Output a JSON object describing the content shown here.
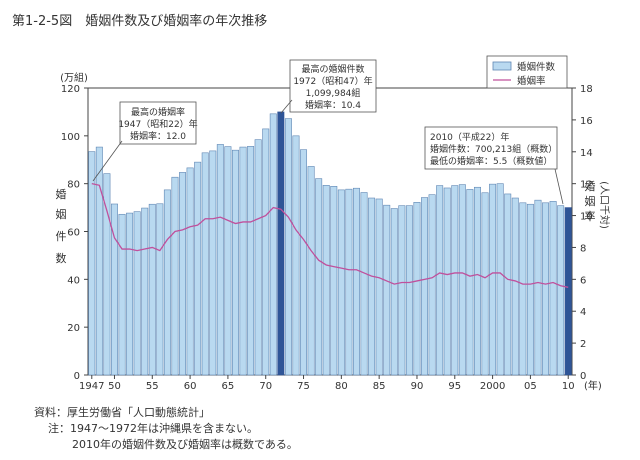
{
  "page_title": "第1-2-5図　婚姻件数及び婚姻率の年次推移",
  "chart_data": {
    "type": "bar+line",
    "title": "婚姻件数及び婚姻率の年次推移",
    "x": [
      1947,
      1948,
      1949,
      1950,
      1951,
      1952,
      1953,
      1954,
      1955,
      1956,
      1957,
      1958,
      1959,
      1960,
      1961,
      1962,
      1963,
      1964,
      1965,
      1966,
      1967,
      1968,
      1969,
      1970,
      1971,
      1972,
      1973,
      1974,
      1975,
      1976,
      1977,
      1978,
      1979,
      1980,
      1981,
      1982,
      1983,
      1984,
      1985,
      1986,
      1987,
      1988,
      1989,
      1990,
      1991,
      1992,
      1993,
      1994,
      1995,
      1996,
      1997,
      1998,
      1999,
      2000,
      2001,
      2002,
      2003,
      2004,
      2005,
      2006,
      2007,
      2008,
      2009,
      2010
    ],
    "series": [
      {
        "name": "婚姻件数",
        "axis": "left",
        "unit": "万組",
        "kind": "bar",
        "values": [
          93.4,
          95.3,
          84.2,
          71.5,
          67.2,
          67.7,
          68.3,
          69.8,
          71.4,
          71.6,
          77.4,
          82.7,
          84.7,
          86.6,
          89.0,
          92.9,
          93.7,
          96.4,
          95.5,
          94.0,
          95.3,
          95.6,
          98.4,
          102.9,
          109.2,
          110.0,
          107.2,
          100.0,
          94.2,
          87.2,
          82.1,
          79.3,
          78.9,
          77.4,
          77.7,
          78.1,
          76.3,
          74.0,
          73.6,
          71.0,
          69.6,
          70.8,
          70.8,
          72.2,
          74.2,
          75.4,
          79.2,
          78.2,
          79.2,
          79.6,
          77.6,
          78.5,
          76.2,
          79.8,
          80.0,
          75.7,
          74.0,
          72.0,
          71.4,
          73.1,
          72.0,
          72.6,
          70.8,
          70.0
        ]
      },
      {
        "name": "婚姻率",
        "axis": "right",
        "unit": "人口千対",
        "kind": "line",
        "values": [
          12.0,
          11.9,
          10.3,
          8.6,
          7.9,
          7.9,
          7.8,
          7.9,
          8.0,
          7.8,
          8.5,
          9.0,
          9.1,
          9.3,
          9.4,
          9.8,
          9.8,
          9.9,
          9.7,
          9.5,
          9.6,
          9.6,
          9.8,
          10.0,
          10.5,
          10.4,
          9.9,
          9.1,
          8.5,
          7.8,
          7.2,
          6.9,
          6.8,
          6.7,
          6.6,
          6.6,
          6.4,
          6.2,
          6.1,
          5.9,
          5.7,
          5.8,
          5.8,
          5.9,
          6.0,
          6.1,
          6.4,
          6.3,
          6.4,
          6.4,
          6.2,
          6.3,
          6.1,
          6.4,
          6.4,
          6.0,
          5.9,
          5.7,
          5.7,
          5.8,
          5.7,
          5.8,
          5.6,
          5.5
        ]
      }
    ],
    "highlight_years": [
      1972,
      2010
    ],
    "x_ticks": [
      "1947",
      "50",
      "55",
      "60",
      "65",
      "70",
      "75",
      "80",
      "85",
      "90",
      "95",
      "2000",
      "05",
      "10"
    ],
    "x_tick_years": [
      1947,
      1950,
      1955,
      1960,
      1965,
      1970,
      1975,
      1980,
      1985,
      1990,
      1995,
      2000,
      2005,
      2010
    ],
    "x_unit": "(年)",
    "left_axis": {
      "label_chars": [
        "婚",
        "姻",
        "件",
        "数"
      ],
      "unit": "(万組)",
      "ylim": [
        0,
        120
      ],
      "ticks": [
        0,
        20,
        40,
        60,
        80,
        100,
        120
      ]
    },
    "right_axis": {
      "label_chars": [
        "婚",
        "姻",
        "率"
      ],
      "unit": "(人口千対)",
      "ylim": [
        0,
        18
      ],
      "ticks": [
        0,
        2,
        4,
        6,
        8,
        10,
        12,
        14,
        16,
        18
      ]
    },
    "legend": {
      "bar": "婚姻件数",
      "line": "婚姻率",
      "position": "top-right"
    },
    "colors": {
      "bar_fill": "#b9d9f0",
      "bar_stroke": "#5f86b3",
      "bar_highlight": "#2f5597",
      "line": "#c0509c",
      "axis": "#444444",
      "box_border": "#555555"
    },
    "annotations": {
      "peak_rate": [
        "最高の婚姻率",
        "1947（昭和22）年",
        "婚姻率：12.0"
      ],
      "peak_count": [
        "最高の婚姻件数",
        "1972（昭和47）年",
        "1,099,984組",
        "婚姻率：10.4"
      ],
      "latest": [
        "2010（平成22）年",
        "婚姻件数：700,213組（概数）",
        "最低の婚姻率：5.5（概数値）"
      ]
    }
  },
  "notes": {
    "source": "資料：厚生労働省「人口動態統計」",
    "note1": "注：1947〜1972年は沖縄県を含まない。",
    "note2": "2010年の婚姻件数及び婚姻率は概数である。"
  }
}
